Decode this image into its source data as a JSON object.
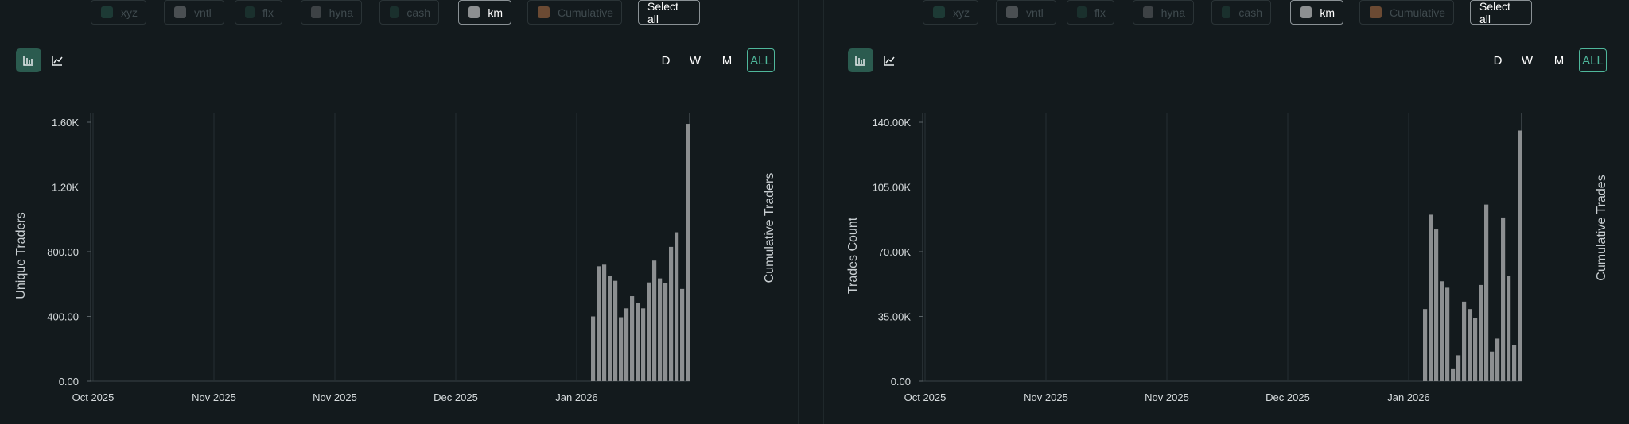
{
  "legend": {
    "items": [
      {
        "label": "xyz",
        "color": "#1d3a35",
        "active": false
      },
      {
        "label": "vntl",
        "color": "#4a4f52",
        "active": false
      },
      {
        "label": "flx",
        "color": "#1a302d",
        "active": false
      },
      {
        "label": "hyna",
        "color": "#3d4245",
        "active": false
      },
      {
        "label": "cash",
        "color": "#1a302d",
        "active": false
      },
      {
        "label": "km",
        "color": "#8c8f91",
        "active": true
      },
      {
        "label": "Cumulative",
        "color": "#6b4a33",
        "active": false
      }
    ],
    "select_all": "Select all"
  },
  "chart_types": [
    {
      "icon": "bar-chart-icon",
      "active": true
    },
    {
      "icon": "line-chart-icon",
      "active": false
    }
  ],
  "ranges": [
    {
      "label": "D",
      "active": false
    },
    {
      "label": "W",
      "active": false
    },
    {
      "label": "M",
      "active": false
    },
    {
      "label": "ALL",
      "active": true
    }
  ],
  "chart_data": [
    {
      "type": "bar",
      "ylabel": "Unique Traders",
      "y2label": "Cumulative Traders",
      "ylim": [
        0,
        1600
      ],
      "yticks": [
        "0.00",
        "400.00",
        "800.00",
        "1.20K",
        "1.60K"
      ],
      "xticks": [
        "Oct 2025",
        "Nov 2025",
        "Nov 2025",
        "Dec 2025",
        "Jan 2026"
      ],
      "series": [
        {
          "name": "km",
          "color": "#8c8f91",
          "values": [
            400,
            710,
            720,
            650,
            620,
            395,
            450,
            525,
            485,
            450,
            610,
            745,
            635,
            605,
            830,
            920,
            570,
            1590
          ]
        }
      ]
    },
    {
      "type": "bar",
      "ylabel": "Trades Count",
      "y2label": "Cumulative Trades",
      "ylim": [
        0,
        140000
      ],
      "yticks": [
        "0.00",
        "35.00K",
        "70.00K",
        "105.00K",
        "140.00K"
      ],
      "xticks": [
        "Oct 2025",
        "Nov 2025",
        "Nov 2025",
        "Dec 2025",
        "Jan 2026"
      ],
      "series": [
        {
          "name": "km",
          "color": "#8c8f91",
          "values": [
            39000,
            90000,
            82000,
            54000,
            50500,
            6500,
            14000,
            43000,
            39000,
            34000,
            52000,
            95500,
            16000,
            23000,
            88500,
            57000,
            19500,
            135500
          ]
        }
      ]
    }
  ]
}
